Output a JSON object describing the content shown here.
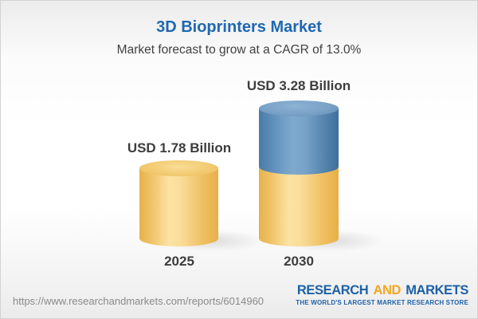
{
  "header": {
    "title": "3D Bioprinters Market",
    "subtitle": "Market forecast to grow at a CAGR of 13.0%"
  },
  "chart_data": {
    "type": "bar",
    "title": "3D Bioprinters Market",
    "subtitle": "Market forecast to grow at a CAGR of 13.0%",
    "categories": [
      "2025",
      "2030"
    ],
    "values": [
      1.78,
      3.28
    ],
    "value_labels": [
      "USD 1.78 Billion",
      "USD 3.28 Billion"
    ],
    "unit": "USD Billion",
    "cagr_percent": 13.0,
    "stacked_segments": [
      {
        "name": "base-market",
        "color": "#f2c566",
        "values": [
          1.78,
          1.78
        ]
      },
      {
        "name": "forecast-growth",
        "color": "#5f8fbd",
        "values": [
          0,
          1.5
        ]
      }
    ],
    "legend": "none",
    "axes": "none",
    "bar_style": "3d-cylinder"
  },
  "footer": {
    "url": "https://www.researchandmarkets.com/reports/6014960",
    "logo": {
      "word1": "RESEARCH",
      "word2": "AND",
      "word3": "MARKETS",
      "tagline": "THE WORLD'S LARGEST MARKET RESEARCH STORE",
      "blue": "#1d61a7",
      "gold": "#f2a71f"
    }
  },
  "colors": {
    "title_blue": "#2068af",
    "subtitle_gray": "#414141",
    "label_dark": "#3d3d3d",
    "url_gray": "#8a8a8a",
    "bar_gold": "#f2c566",
    "bar_blue": "#5f8fbd",
    "background_edge": "#ececec"
  }
}
